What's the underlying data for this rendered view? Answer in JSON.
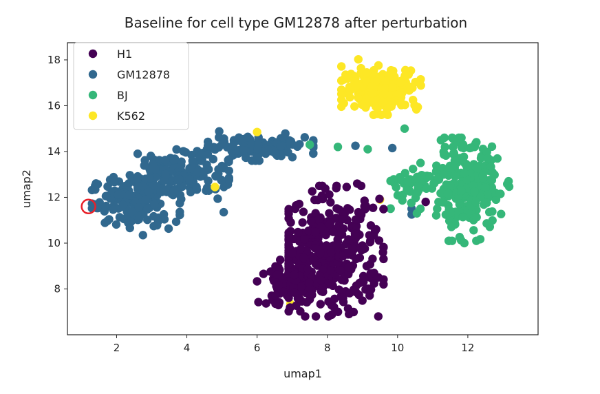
{
  "chart_data": {
    "type": "scatter",
    "title": "Baseline for cell type GM12878 after perturbation",
    "xlabel": "umap1",
    "ylabel": "umap2",
    "xlim": [
      0.6,
      14.0
    ],
    "ylim": [
      6.0,
      18.75
    ],
    "x_ticks": [
      2,
      4,
      6,
      8,
      10,
      12
    ],
    "y_ticks": [
      8,
      10,
      12,
      14,
      16,
      18
    ],
    "grid": false,
    "legend_position": "top-left",
    "series": [
      {
        "name": "H1",
        "color": "#440154",
        "clusters": [
          {
            "center": [
              8.0,
              9.4
            ],
            "spread": [
              0.8,
              1.2
            ],
            "count": 380,
            "range_x": [
              6.9,
              9.6
            ],
            "range_y": [
              6.8,
              12.5
            ]
          },
          {
            "center": [
              7.0,
              8.2
            ],
            "spread": [
              0.45,
              0.45
            ],
            "count": 120,
            "range_x": [
              6.0,
              8.0
            ],
            "range_y": [
              7.0,
              9.5
            ]
          }
        ],
        "outliers": [
          [
            8.85,
            12.6
          ],
          [
            8.55,
            12.45
          ],
          [
            10.8,
            11.8
          ]
        ]
      },
      {
        "name": "GM12878",
        "color": "#31688e",
        "clusters": [
          {
            "center": [
              2.5,
              11.8
            ],
            "spread": [
              0.6,
              0.55
            ],
            "count": 150,
            "range_x": [
              1.3,
              3.8
            ],
            "range_y": [
              10.4,
              13.2
            ]
          },
          {
            "center": [
              3.8,
              13.0
            ],
            "spread": [
              0.7,
              0.55
            ],
            "count": 160,
            "range_x": [
              2.6,
              5.2
            ],
            "range_y": [
              11.6,
              14.4
            ]
          },
          {
            "center": [
              5.9,
              14.2
            ],
            "spread": [
              0.8,
              0.25
            ],
            "count": 130,
            "range_x": [
              4.6,
              7.6
            ],
            "range_y": [
              13.6,
              14.9
            ]
          }
        ],
        "outliers": [
          [
            5.05,
            11.35
          ],
          [
            2.75,
            10.35
          ],
          [
            10.4,
            11.5
          ],
          [
            10.4,
            11.25
          ],
          [
            8.8,
            14.25
          ],
          [
            9.85,
            14.15
          ]
        ]
      },
      {
        "name": "BJ",
        "color": "#35b779",
        "clusters": [
          {
            "center": [
              12.0,
              12.4
            ],
            "spread": [
              0.45,
              0.95
            ],
            "count": 240,
            "range_x": [
              11.1,
              13.4
            ],
            "range_y": [
              10.1,
              14.6
            ]
          },
          {
            "center": [
              10.6,
              12.6
            ],
            "spread": [
              0.5,
              0.45
            ],
            "count": 60,
            "range_x": [
              9.8,
              11.5
            ],
            "range_y": [
              11.5,
              13.5
            ]
          }
        ],
        "outliers": [
          [
            8.3,
            14.2
          ],
          [
            9.15,
            14.1
          ],
          [
            10.2,
            15.0
          ],
          [
            9.8,
            11.5
          ],
          [
            10.65,
            11.5
          ],
          [
            7.5,
            14.3
          ],
          [
            11.9,
            10.0
          ],
          [
            10.55,
            11.3
          ]
        ]
      },
      {
        "name": "K562",
        "color": "#fde725",
        "clusters": [
          {
            "center": [
              9.5,
              16.75
            ],
            "spread": [
              0.55,
              0.45
            ],
            "count": 210,
            "range_x": [
              8.4,
              11.2
            ],
            "range_y": [
              15.6,
              18.2
            ]
          }
        ],
        "outliers": [
          [
            4.8,
            12.45
          ],
          [
            9.5,
            11.9
          ],
          [
            6.95,
            7.35
          ],
          [
            7.2,
            7.8
          ],
          [
            6.0,
            14.85
          ]
        ]
      }
    ],
    "annotations": [
      {
        "type": "circle-marker",
        "x": 1.2,
        "y": 11.6,
        "color": "#e8212a"
      }
    ]
  }
}
